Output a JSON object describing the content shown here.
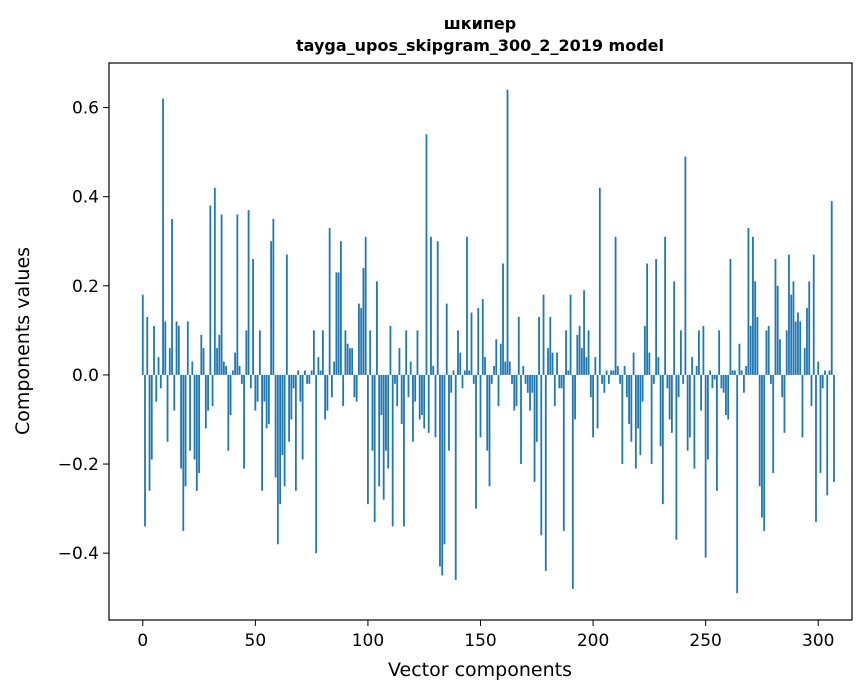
{
  "chart_data": {
    "type": "bar",
    "title": "шкипер",
    "subtitle": "tayga_upos_skipgram_300_2_2019 model",
    "xlabel": "Vector components",
    "ylabel": "Components values",
    "xlim": [
      -15,
      315
    ],
    "ylim": [
      -0.55,
      0.7
    ],
    "xticks": [
      0,
      50,
      100,
      150,
      200,
      250,
      300
    ],
    "yticks": [
      -0.4,
      -0.2,
      0.0,
      0.2,
      0.4,
      0.6
    ],
    "ytick_labels": [
      "−0.4",
      "−0.2",
      "0.0",
      "0.2",
      "0.4",
      "0.6"
    ],
    "bar_color": "#1f77b4",
    "values": [
      0.18,
      -0.34,
      0.13,
      -0.26,
      -0.19,
      0.11,
      -0.06,
      0.04,
      -0.03,
      0.62,
      0.12,
      -0.15,
      0.06,
      0.35,
      -0.08,
      0.12,
      0.11,
      -0.21,
      -0.35,
      -0.25,
      0.12,
      -0.17,
      0.03,
      -0.19,
      -0.26,
      -0.22,
      0.09,
      0.06,
      -0.12,
      -0.08,
      0.38,
      -0.07,
      0.42,
      0.06,
      0.09,
      0.36,
      0.03,
      0.02,
      -0.17,
      -0.09,
      0.01,
      0.05,
      0.36,
      0.02,
      -0.02,
      -0.21,
      0.1,
      0.37,
      -0.03,
      0.26,
      -0.08,
      -0.06,
      0.1,
      -0.26,
      -0.06,
      -0.12,
      -0.11,
      0.3,
      0.35,
      -0.23,
      -0.38,
      -0.29,
      -0.18,
      -0.25,
      0.27,
      -0.15,
      -0.1,
      -0.03,
      -0.26,
      0.01,
      -0.06,
      -0.19,
      0.01,
      -0.02,
      -0.02,
      0.01,
      0.1,
      -0.4,
      0.04,
      0.01,
      0.1,
      -0.1,
      -0.08,
      0.33,
      -0.05,
      0.03,
      0.23,
      0.23,
      0.3,
      -0.07,
      0.1,
      0.07,
      0.06,
      0.06,
      -0.05,
      -0.06,
      0.16,
      0.15,
      0.24,
      0.31,
      -0.29,
      0.1,
      -0.17,
      -0.33,
      0.21,
      -0.25,
      -0.09,
      -0.28,
      -0.17,
      -0.21,
      0.11,
      -0.34,
      -0.02,
      -0.07,
      0.06,
      -0.11,
      -0.34,
      0.1,
      -0.05,
      0.03,
      -0.15,
      -0.06,
      0.1,
      -0.1,
      -0.09,
      -0.12,
      0.54,
      -0.13,
      0.31,
      0.02,
      -0.14,
      0.3,
      -0.43,
      -0.45,
      -0.38,
      0.16,
      -0.17,
      -0.04,
      0.01,
      -0.46,
      0.1,
      0.05,
      -0.03,
      0.01,
      0.31,
      0.01,
      0.14,
      -0.02,
      -0.3,
      0.15,
      -0.14,
      0.17,
      0.04,
      -0.17,
      -0.25,
      -0.02,
      0.02,
      0.08,
      -0.07,
      0.07,
      0.25,
      0.03,
      0.64,
      0.03,
      -0.02,
      -0.08,
      -0.07,
      0.13,
      -0.2,
      0.02,
      -0.02,
      -0.04,
      -0.08,
      -0.04,
      -0.24,
      -0.15,
      0.13,
      -0.36,
      0.18,
      -0.44,
      0.06,
      0.13,
      0.05,
      -0.07,
      0.05,
      -0.03,
      -0.03,
      -0.35,
      0.1,
      0.01,
      0.18,
      -0.48,
      -0.1,
      0.09,
      0.11,
      0.06,
      0.19,
      0.04,
      0.1,
      -0.05,
      -0.14,
      0.04,
      -0.12,
      0.42,
      -0.02,
      -0.04,
      0.01,
      -0.02,
      0.01,
      0.01,
      0.31,
      0.02,
      -0.02,
      -0.2,
      0.02,
      -0.05,
      -0.11,
      -0.15,
      0.05,
      -0.21,
      -0.12,
      -0.18,
      -0.06,
      0.11,
      0.25,
      0.05,
      -0.2,
      -0.02,
      0.26,
      0.04,
      -0.16,
      -0.29,
      0.31,
      -0.03,
      -0.1,
      -0.13,
      0.21,
      -0.37,
      -0.05,
      0.1,
      -0.02,
      0.49,
      -0.17,
      -0.14,
      0.04,
      -0.21,
      0.02,
      0.1,
      -0.08,
      0.11,
      -0.41,
      -0.19,
      0.01,
      -0.03,
      -0.01,
      -0.26,
      0.1,
      -0.03,
      -0.04,
      -0.09,
      -0.1,
      0.26,
      0.01,
      0.01,
      -0.49,
      0.07,
      0.01,
      -0.04,
      0.02,
      0.33,
      0.11,
      0.31,
      0.21,
      0.13,
      -0.25,
      -0.32,
      -0.35,
      0.1,
      0.11,
      -0.02,
      -0.22,
      0.26,
      0.2,
      0.08,
      -0.05,
      -0.13,
      0.1,
      0.27,
      0.18,
      0.21,
      0.12,
      0.14,
      0.12,
      -0.14,
      0.06,
      0.15,
      0.21,
      -0.07,
      0.27,
      -0.33,
      0.03,
      -0.22,
      -0.03,
      0.01,
      -0.27,
      0.01,
      0.39,
      -0.24
    ],
    "annotations": []
  }
}
